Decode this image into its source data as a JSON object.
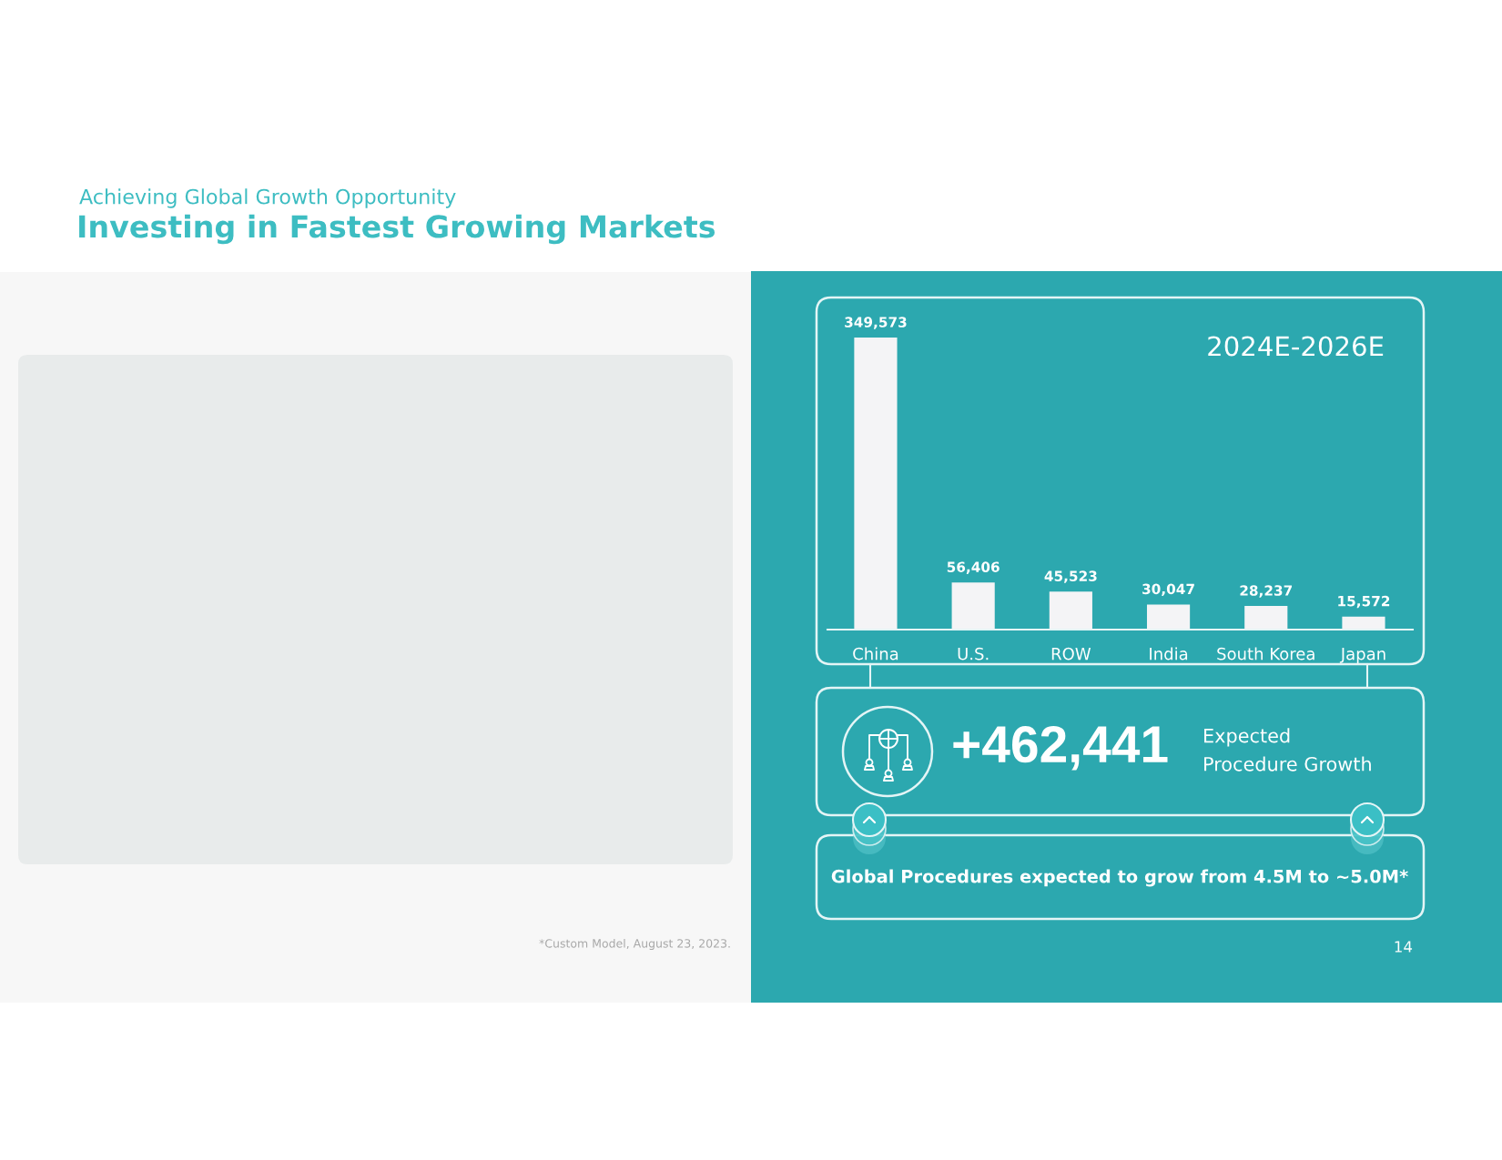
{
  "chart_data": {
    "type": "bar",
    "subtitle": "Achieving Global Growth Opportunity",
    "title": "Investing in Fastest Growing Markets",
    "categories": [
      "China",
      "U.S.",
      "ROW",
      "India",
      "South Korea",
      "Japan"
    ],
    "values": [
      349573,
      56406,
      45523,
      30047,
      28237,
      15572
    ],
    "value_labels": [
      "349,573",
      "56,406",
      "45,523",
      "30,047",
      "28,237",
      "15,572"
    ],
    "color": "#f4f4f6",
    "tick_labels": "x",
    "annotations": [
      "2024E-2026E",
      "+462,441",
      "Expected\nProcedure Growth",
      "Global Procedures expected to grow from 4.5M to ~5.0M*",
      "*Custom Model, August 23, 2023.",
      "14"
    ]
  }
}
